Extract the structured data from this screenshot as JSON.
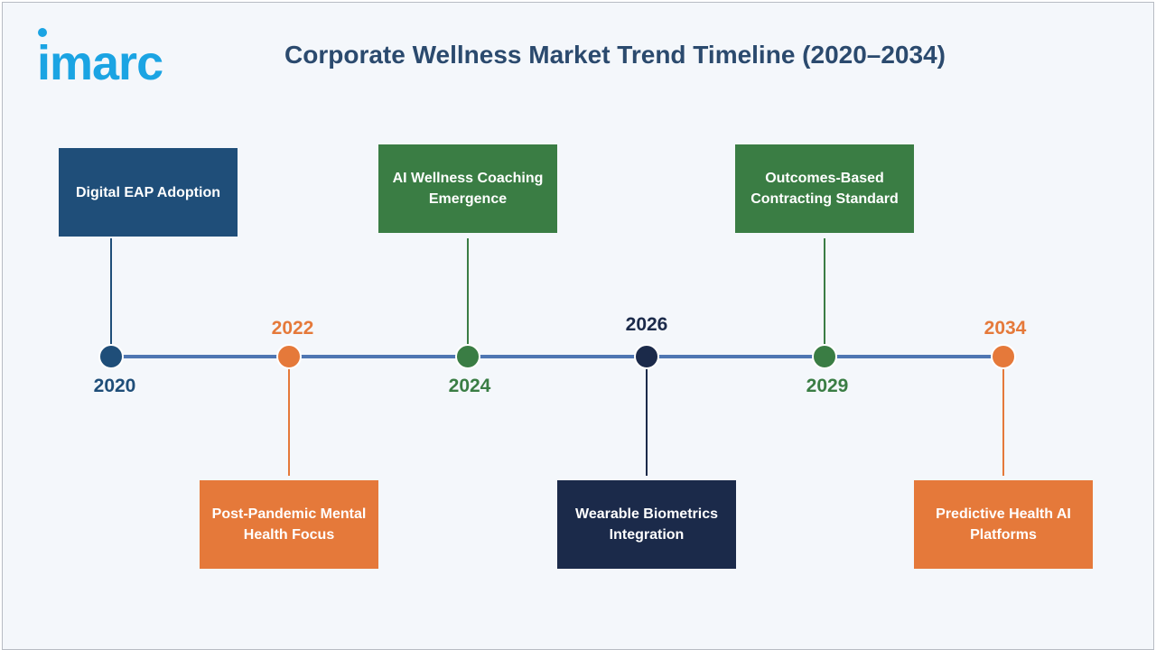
{
  "logo": {
    "text": "imarc"
  },
  "title": "Corporate Wellness Market Trend Timeline (2020–2034)",
  "colors": {
    "navy_blue": "#1f4e79",
    "orange": "#e5793a",
    "green": "#3a7d44",
    "dark_navy": "#1b2a4a",
    "axis": "#4f77b3",
    "brand_blue": "#1ba4e3"
  },
  "milestones": [
    {
      "year": "2020",
      "label": "Digital EAP Adoption",
      "color": "#1f4e79",
      "position": "above"
    },
    {
      "year": "2022",
      "label": "Post-Pandemic Mental Health Focus",
      "color": "#e5793a",
      "position": "below"
    },
    {
      "year": "2024",
      "label": "AI Wellness Coaching Emergence",
      "color": "#3a7d44",
      "position": "above"
    },
    {
      "year": "2026",
      "label": "Wearable Biometrics Integration",
      "color": "#1b2a4a",
      "position": "below"
    },
    {
      "year": "2029",
      "label": "Outcomes-Based Contracting Standard",
      "color": "#3a7d44",
      "position": "above"
    },
    {
      "year": "2034",
      "label": "Predictive Health AI Platforms",
      "color": "#e5793a",
      "position": "below"
    }
  ]
}
